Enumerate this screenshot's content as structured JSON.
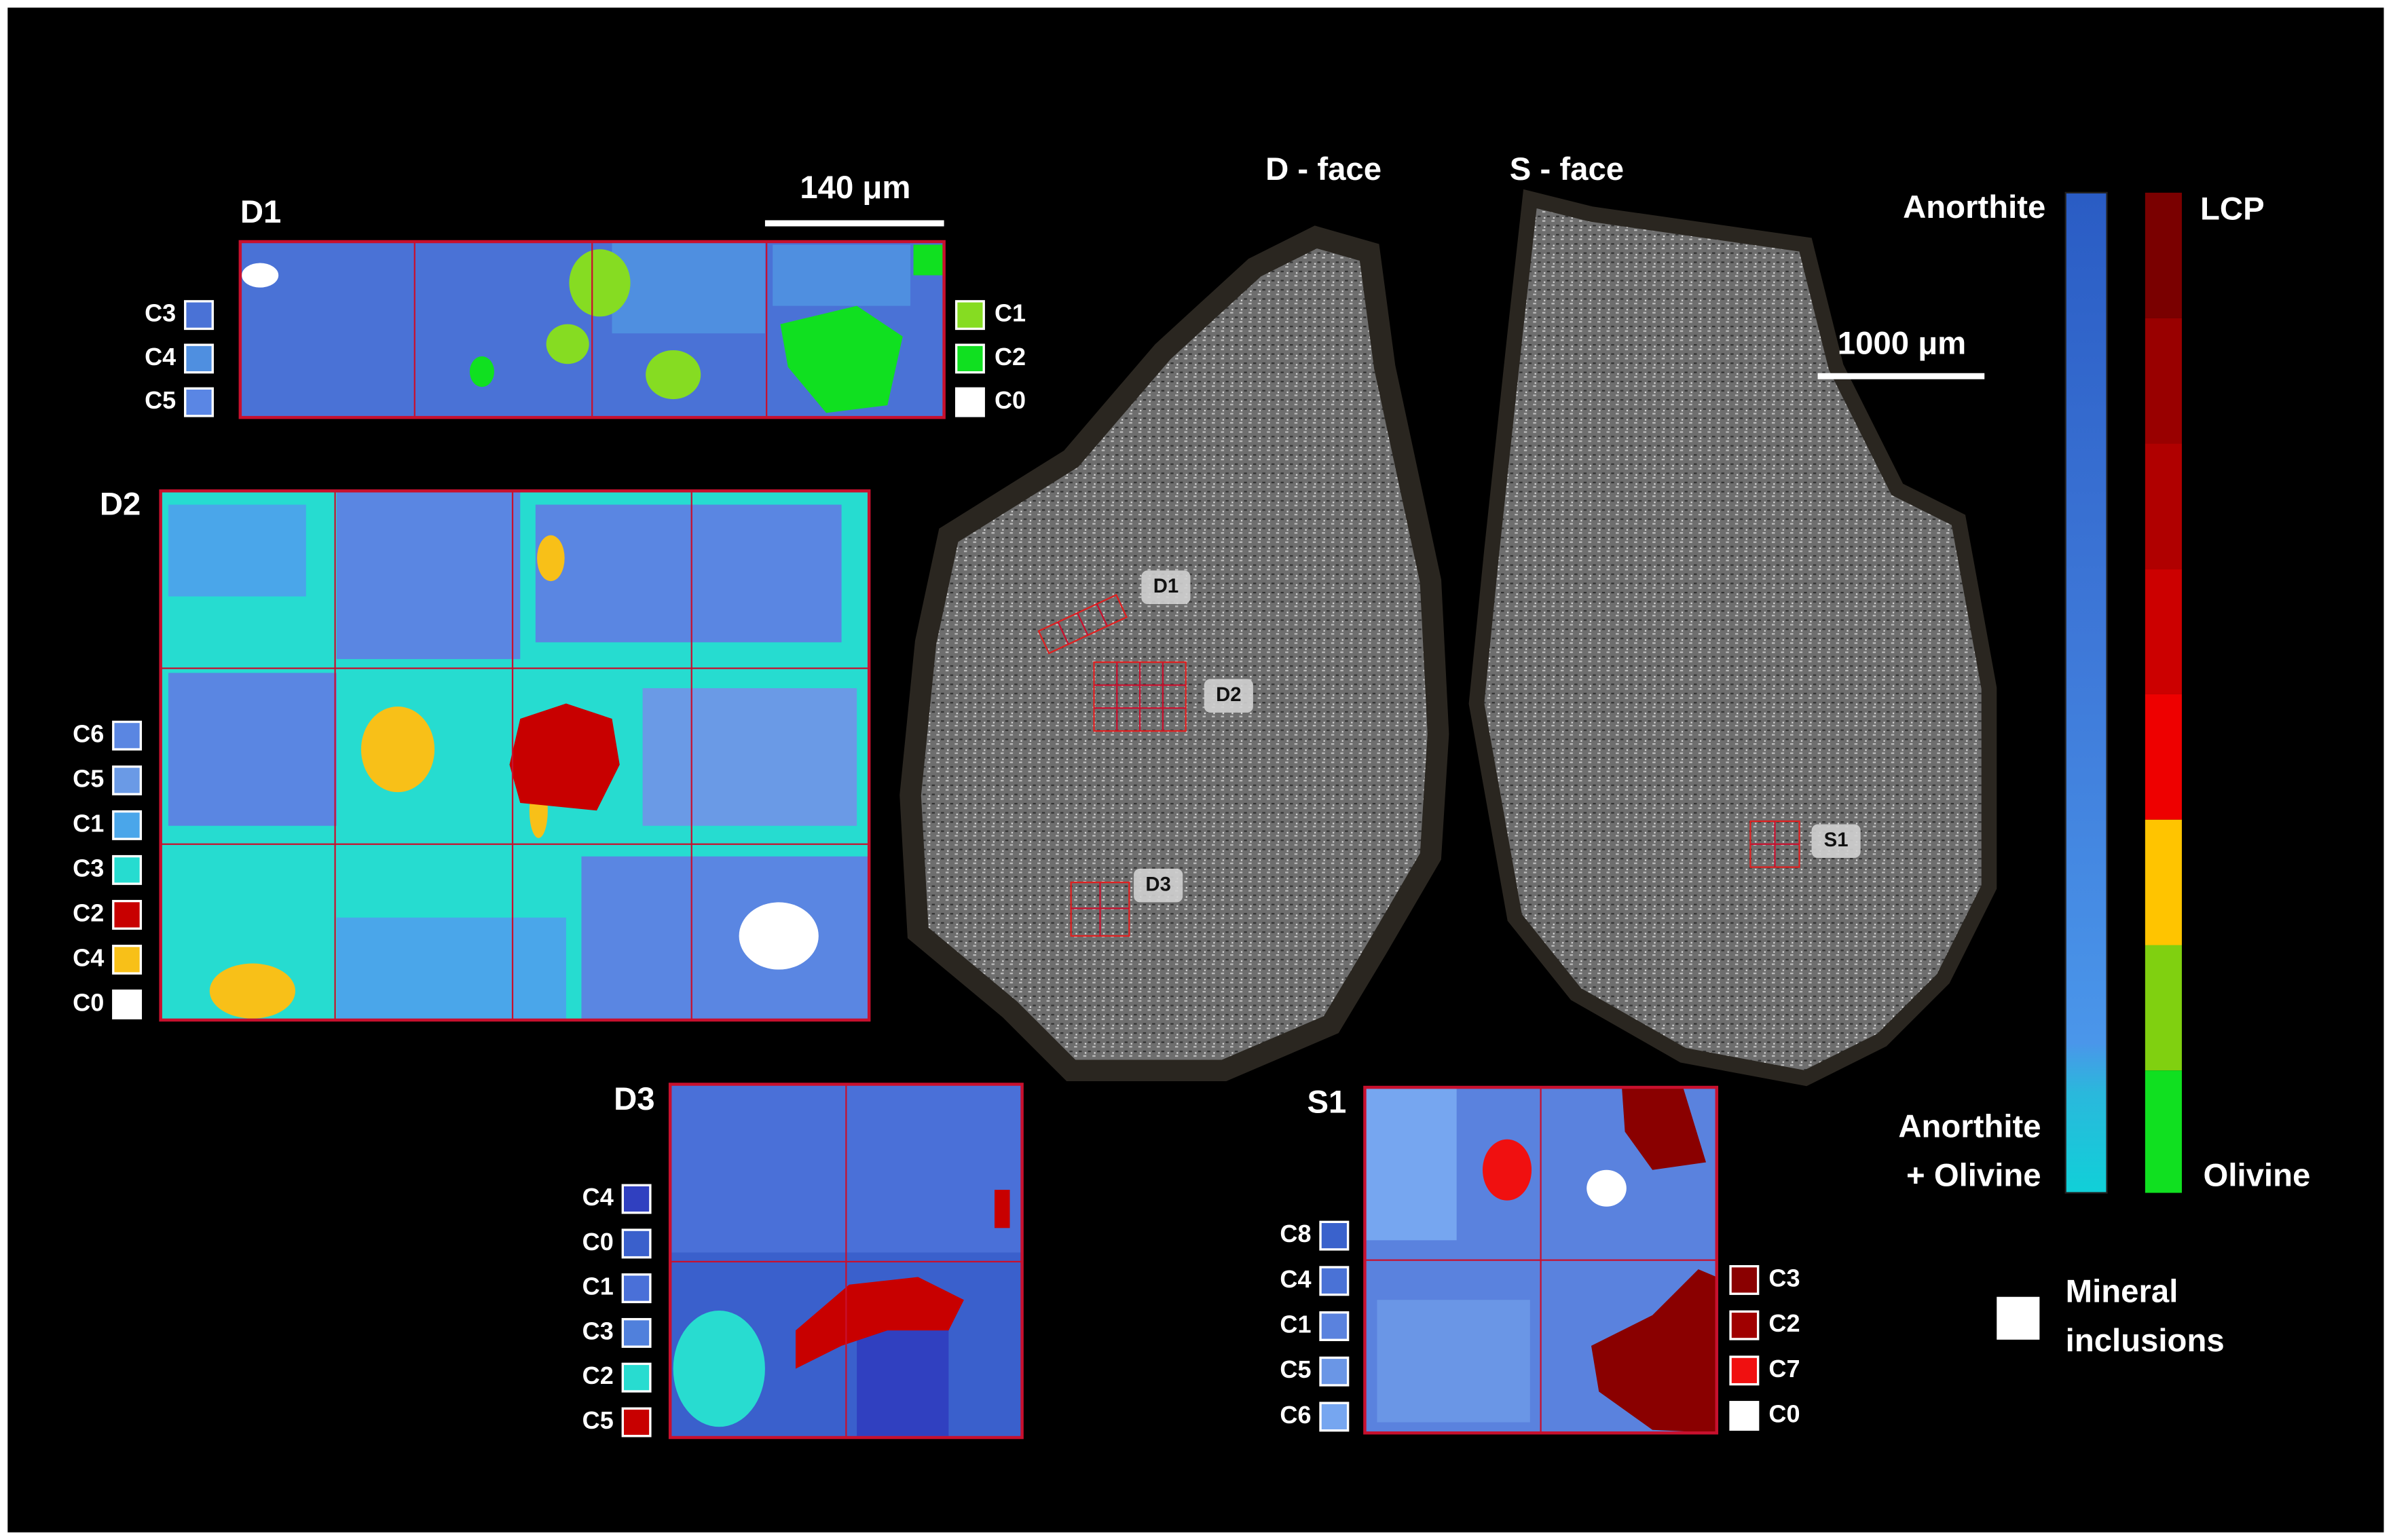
{
  "faces": [
    "D - face",
    "S - face"
  ],
  "scale_bars": [
    "140 μm",
    "1000 μm"
  ],
  "panels": [
    {
      "label": "D1",
      "legend_left": [
        {
          "label": "C3",
          "color": "#4a72d6"
        },
        {
          "label": "C4",
          "color": "#4f8fe0"
        },
        {
          "label": "C5",
          "color": "#5a86e4"
        }
      ],
      "legend_right": [
        {
          "label": "C1",
          "color": "#86dc22"
        },
        {
          "label": "C2",
          "color": "#10e020"
        },
        {
          "label": "C0",
          "color": "#ffffff"
        }
      ]
    },
    {
      "label": "D2",
      "legend_left": [
        {
          "label": "C6",
          "color": "#5a86e2"
        },
        {
          "label": "C5",
          "color": "#6a9ae6"
        },
        {
          "label": "C1",
          "color": "#4aa6ea"
        },
        {
          "label": "C3",
          "color": "#26dcd0"
        },
        {
          "label": "C2",
          "color": "#c80000"
        },
        {
          "label": "C4",
          "color": "#f8c018"
        },
        {
          "label": "C0",
          "color": "#ffffff"
        }
      ],
      "legend_right": []
    },
    {
      "label": "D3",
      "legend_left": [
        {
          "label": "C4",
          "color": "#3040c0"
        },
        {
          "label": "C0",
          "color": "#3a60cc"
        },
        {
          "label": "C1",
          "color": "#4a70d8"
        },
        {
          "label": "C3",
          "color": "#5080dc"
        },
        {
          "label": "C2",
          "color": "#28dcd0"
        },
        {
          "label": "C5",
          "color": "#c80000"
        }
      ],
      "legend_right": []
    },
    {
      "label": "S1",
      "legend_left": [
        {
          "label": "C8",
          "color": "#3a62cc"
        },
        {
          "label": "C4",
          "color": "#4a72d6"
        },
        {
          "label": "C1",
          "color": "#5a82de"
        },
        {
          "label": "C5",
          "color": "#6a96e6"
        },
        {
          "label": "C6",
          "color": "#76a6f0"
        }
      ],
      "legend_right": [
        {
          "label": "C3",
          "color": "#8a0000"
        },
        {
          "label": "C2",
          "color": "#a00000"
        },
        {
          "label": "C7",
          "color": "#f01010"
        },
        {
          "label": "C0",
          "color": "#ffffff"
        }
      ]
    }
  ],
  "region_markers": [
    "D1",
    "D2",
    "D3",
    "S1"
  ],
  "colorbars": {
    "blue_top": "Anorthite",
    "blue_bottom": [
      "Anorthite",
      "+ Olivine"
    ],
    "red_top": "LCP",
    "red_bottom": "Olivine"
  },
  "inclusions": [
    "Mineral",
    "inclusions"
  ]
}
